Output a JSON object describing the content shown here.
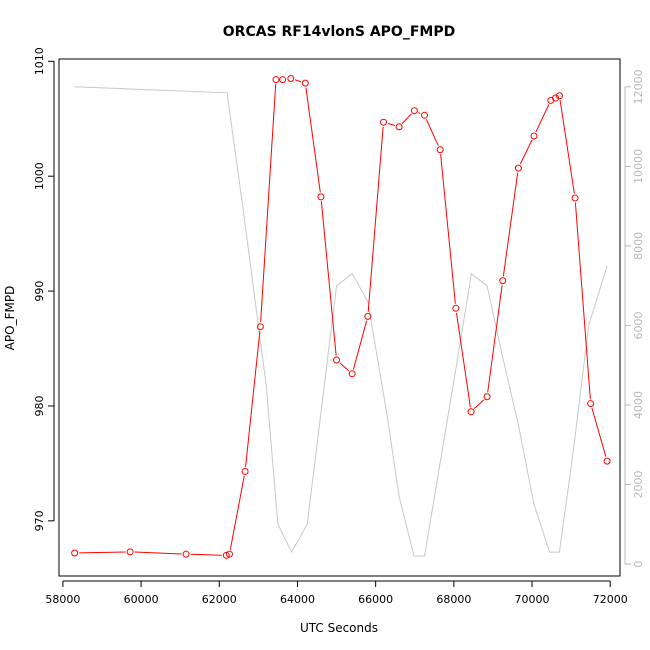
{
  "chart_data": {
    "type": "line",
    "title": "ORCAS RF14vlonS APO_FMPD",
    "xlabel": "UTC Seconds",
    "ylabel": "APO_FMPD",
    "xlim": [
      57900,
      72250
    ],
    "ylim": [
      965.2,
      1010.2
    ],
    "y2lim": [
      -300,
      12700
    ],
    "x_ticks": [
      58000,
      60000,
      62000,
      64000,
      66000,
      68000,
      70000,
      72000
    ],
    "x_tick_labels": [
      "58000",
      "60000",
      "62000",
      "64000",
      "66000",
      "68000",
      "70000",
      "72000"
    ],
    "y_ticks": [
      970,
      980,
      990,
      1000,
      1010
    ],
    "y_tick_labels": [
      "970",
      "980",
      "990",
      "1000",
      "1010"
    ],
    "y2_ticks": [
      0,
      2000,
      4000,
      6000,
      8000,
      10000,
      12000
    ],
    "y2_tick_labels": [
      "0",
      "2000",
      "4000",
      "6000",
      "8000",
      "10000",
      "12000"
    ],
    "grid": false,
    "colors": {
      "primary": "#ff0000",
      "secondary": "#c8c8c8",
      "axis": "#000000",
      "right_axis": "#b8b8b8"
    },
    "series": [
      {
        "axis": "left",
        "style": "line+points",
        "x": [
          58300,
          59720,
          61150,
          62180,
          62260,
          62660,
          63050,
          63450,
          63620,
          63830,
          64200,
          64600,
          65000,
          65400,
          65800,
          66200,
          66600,
          66990,
          67250,
          67650,
          68050,
          68440,
          68850,
          69250,
          69650,
          70050,
          70480,
          70600,
          70700,
          71100,
          71500,
          71920
        ],
        "y": [
          967.2,
          967.3,
          967.1,
          967.0,
          967.1,
          974.3,
          986.9,
          1008.4,
          1008.4,
          1008.5,
          1008.1,
          998.2,
          984.0,
          982.8,
          987.8,
          1004.7,
          1004.3,
          1005.7,
          1005.3,
          1002.3,
          988.5,
          979.5,
          980.8,
          990.9,
          1000.7,
          1003.5,
          1006.6,
          1006.8,
          1007.0,
          998.1,
          980.2,
          975.2
        ]
      },
      {
        "axis": "right",
        "style": "line",
        "x": [
          58300,
          62200,
          62600,
          63200,
          63500,
          63850,
          64250,
          65000,
          65400,
          65800,
          66300,
          66600,
          66980,
          67250,
          68100,
          68450,
          68850,
          69250,
          69650,
          70050,
          70450,
          70700,
          71050,
          71450,
          71920
        ],
        "y": [
          12000,
          11850,
          9000,
          4500,
          1000,
          300,
          1000,
          7000,
          7300,
          6600,
          3700,
          1700,
          200,
          200,
          5200,
          7300,
          7000,
          5200,
          3500,
          1500,
          300,
          300,
          2800,
          6000,
          7500
        ]
      }
    ]
  }
}
